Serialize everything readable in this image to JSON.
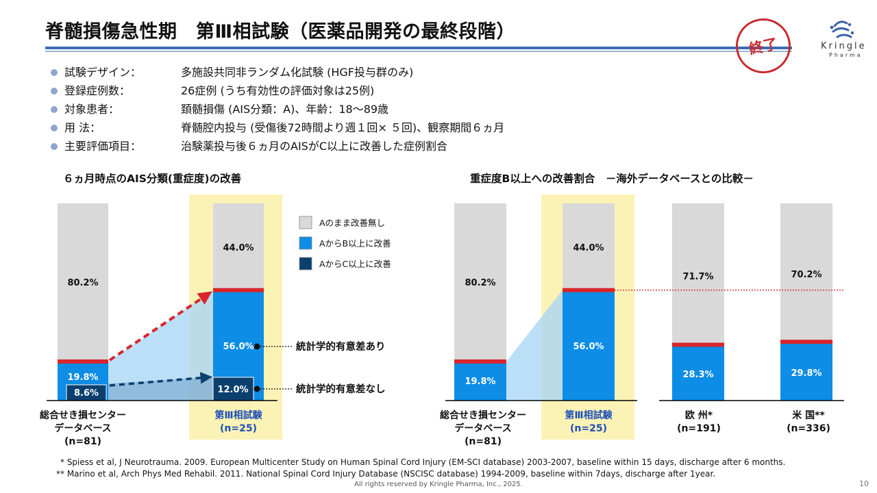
{
  "header": {
    "title": "脊髄損傷急性期　第Ⅲ相試験（医薬品開発の最終段階）",
    "stamp": "終了",
    "logo_name": "Kringle",
    "logo_sub": "Pharma"
  },
  "bullets": [
    {
      "label": "試験デザイン：",
      "value": "多施設共同非ランダム化試験 (HGF投与群のみ)"
    },
    {
      "label": "登録症例数：",
      "value": "26症例 (うち有効性の評価対象は25例)"
    },
    {
      "label": "対象患者：",
      "value": "頚髄損傷 (AIS分類：A)、年齢：18～89歳"
    },
    {
      "label": "用 法：",
      "value": "脊髄腔内投与 (受傷後72時間より週１回× ５回)、観察期間６ヵ月"
    },
    {
      "label": "主要評価項目：",
      "value": "治験薬投与後６ヵ月のAISがC以上に改善した症例割合"
    }
  ],
  "colors": {
    "gray": "#d9d9d9",
    "blue": "#0d8de6",
    "navy": "#0b3f6e",
    "red_line": "#d9252b",
    "highlight": "#fbf2b6",
    "bullet": "#8fa6cf"
  },
  "chart_data": [
    {
      "type": "bar",
      "stacked": true,
      "title": "６ヵ月時点のAIS分類(重症度)の改善",
      "categories": [
        {
          "lines": [
            "総合せき損センター",
            "データベース",
            "(n=81)"
          ]
        },
        {
          "lines": [
            "第Ⅲ相試験",
            "(n=25)"
          ],
          "highlight": true
        }
      ],
      "series": [
        {
          "name": "AからC以上に改善",
          "color": "#0b3f6e",
          "values": [
            8.6,
            12.0
          ],
          "labels": [
            "8.6%",
            "12.0%"
          ]
        },
        {
          "name": "AからB以上に改善",
          "color": "#0d8de6",
          "values": [
            19.8,
            56.0
          ],
          "labels": [
            "19.8%",
            "56.0%"
          ]
        },
        {
          "name": "Aのまま改善無し",
          "color": "#d9d9d9",
          "values": [
            80.2,
            44.0
          ],
          "labels": [
            "80.2%",
            "44.0%"
          ]
        }
      ],
      "annotations": [
        "統計学的有意差あり",
        "統計学的有意差なし"
      ],
      "legend_position": "right"
    },
    {
      "type": "bar",
      "stacked": true,
      "title": "重症度B以上への改善割合　－海外データベースとの比較－",
      "categories": [
        {
          "lines": [
            "総合せき損センター",
            "データベース",
            "(n=81)"
          ]
        },
        {
          "lines": [
            "第Ⅲ相試験",
            "(n=25)"
          ],
          "highlight": true
        },
        {
          "lines": [
            "欧 州*",
            "(n=191)"
          ]
        },
        {
          "lines": [
            "米 国**",
            "(n=336)"
          ]
        }
      ],
      "series": [
        {
          "name": "B以上に改善",
          "color": "#0d8de6",
          "values": [
            19.8,
            56.0,
            28.3,
            29.8
          ],
          "labels": [
            "19.8%",
            "56.0%",
            "28.3%",
            "29.8%"
          ]
        },
        {
          "name": "改善無し",
          "color": "#d9d9d9",
          "values": [
            80.2,
            44.0,
            71.7,
            70.2
          ],
          "labels": [
            "80.2%",
            "44.0%",
            "71.7%",
            "70.2%"
          ]
        }
      ]
    }
  ],
  "footnotes": [
    "*  Spiess et al, J Neurotrauma. 2009. European Multicenter Study on Human Spinal Cord Injury (EM-SCI database) 2003-2007, baseline within 15 days, discharge after 6 months.",
    "**  Marino et al, Arch Phys Med Rehabil. 2011. National Spinal Cord Injury Database (NSCISC database) 1994-2009, baseline within 7days, discharge after 1year."
  ],
  "footer": {
    "copyright": "All rights reserved by Kringle Pharma, Inc., 2025.",
    "page": "10"
  }
}
